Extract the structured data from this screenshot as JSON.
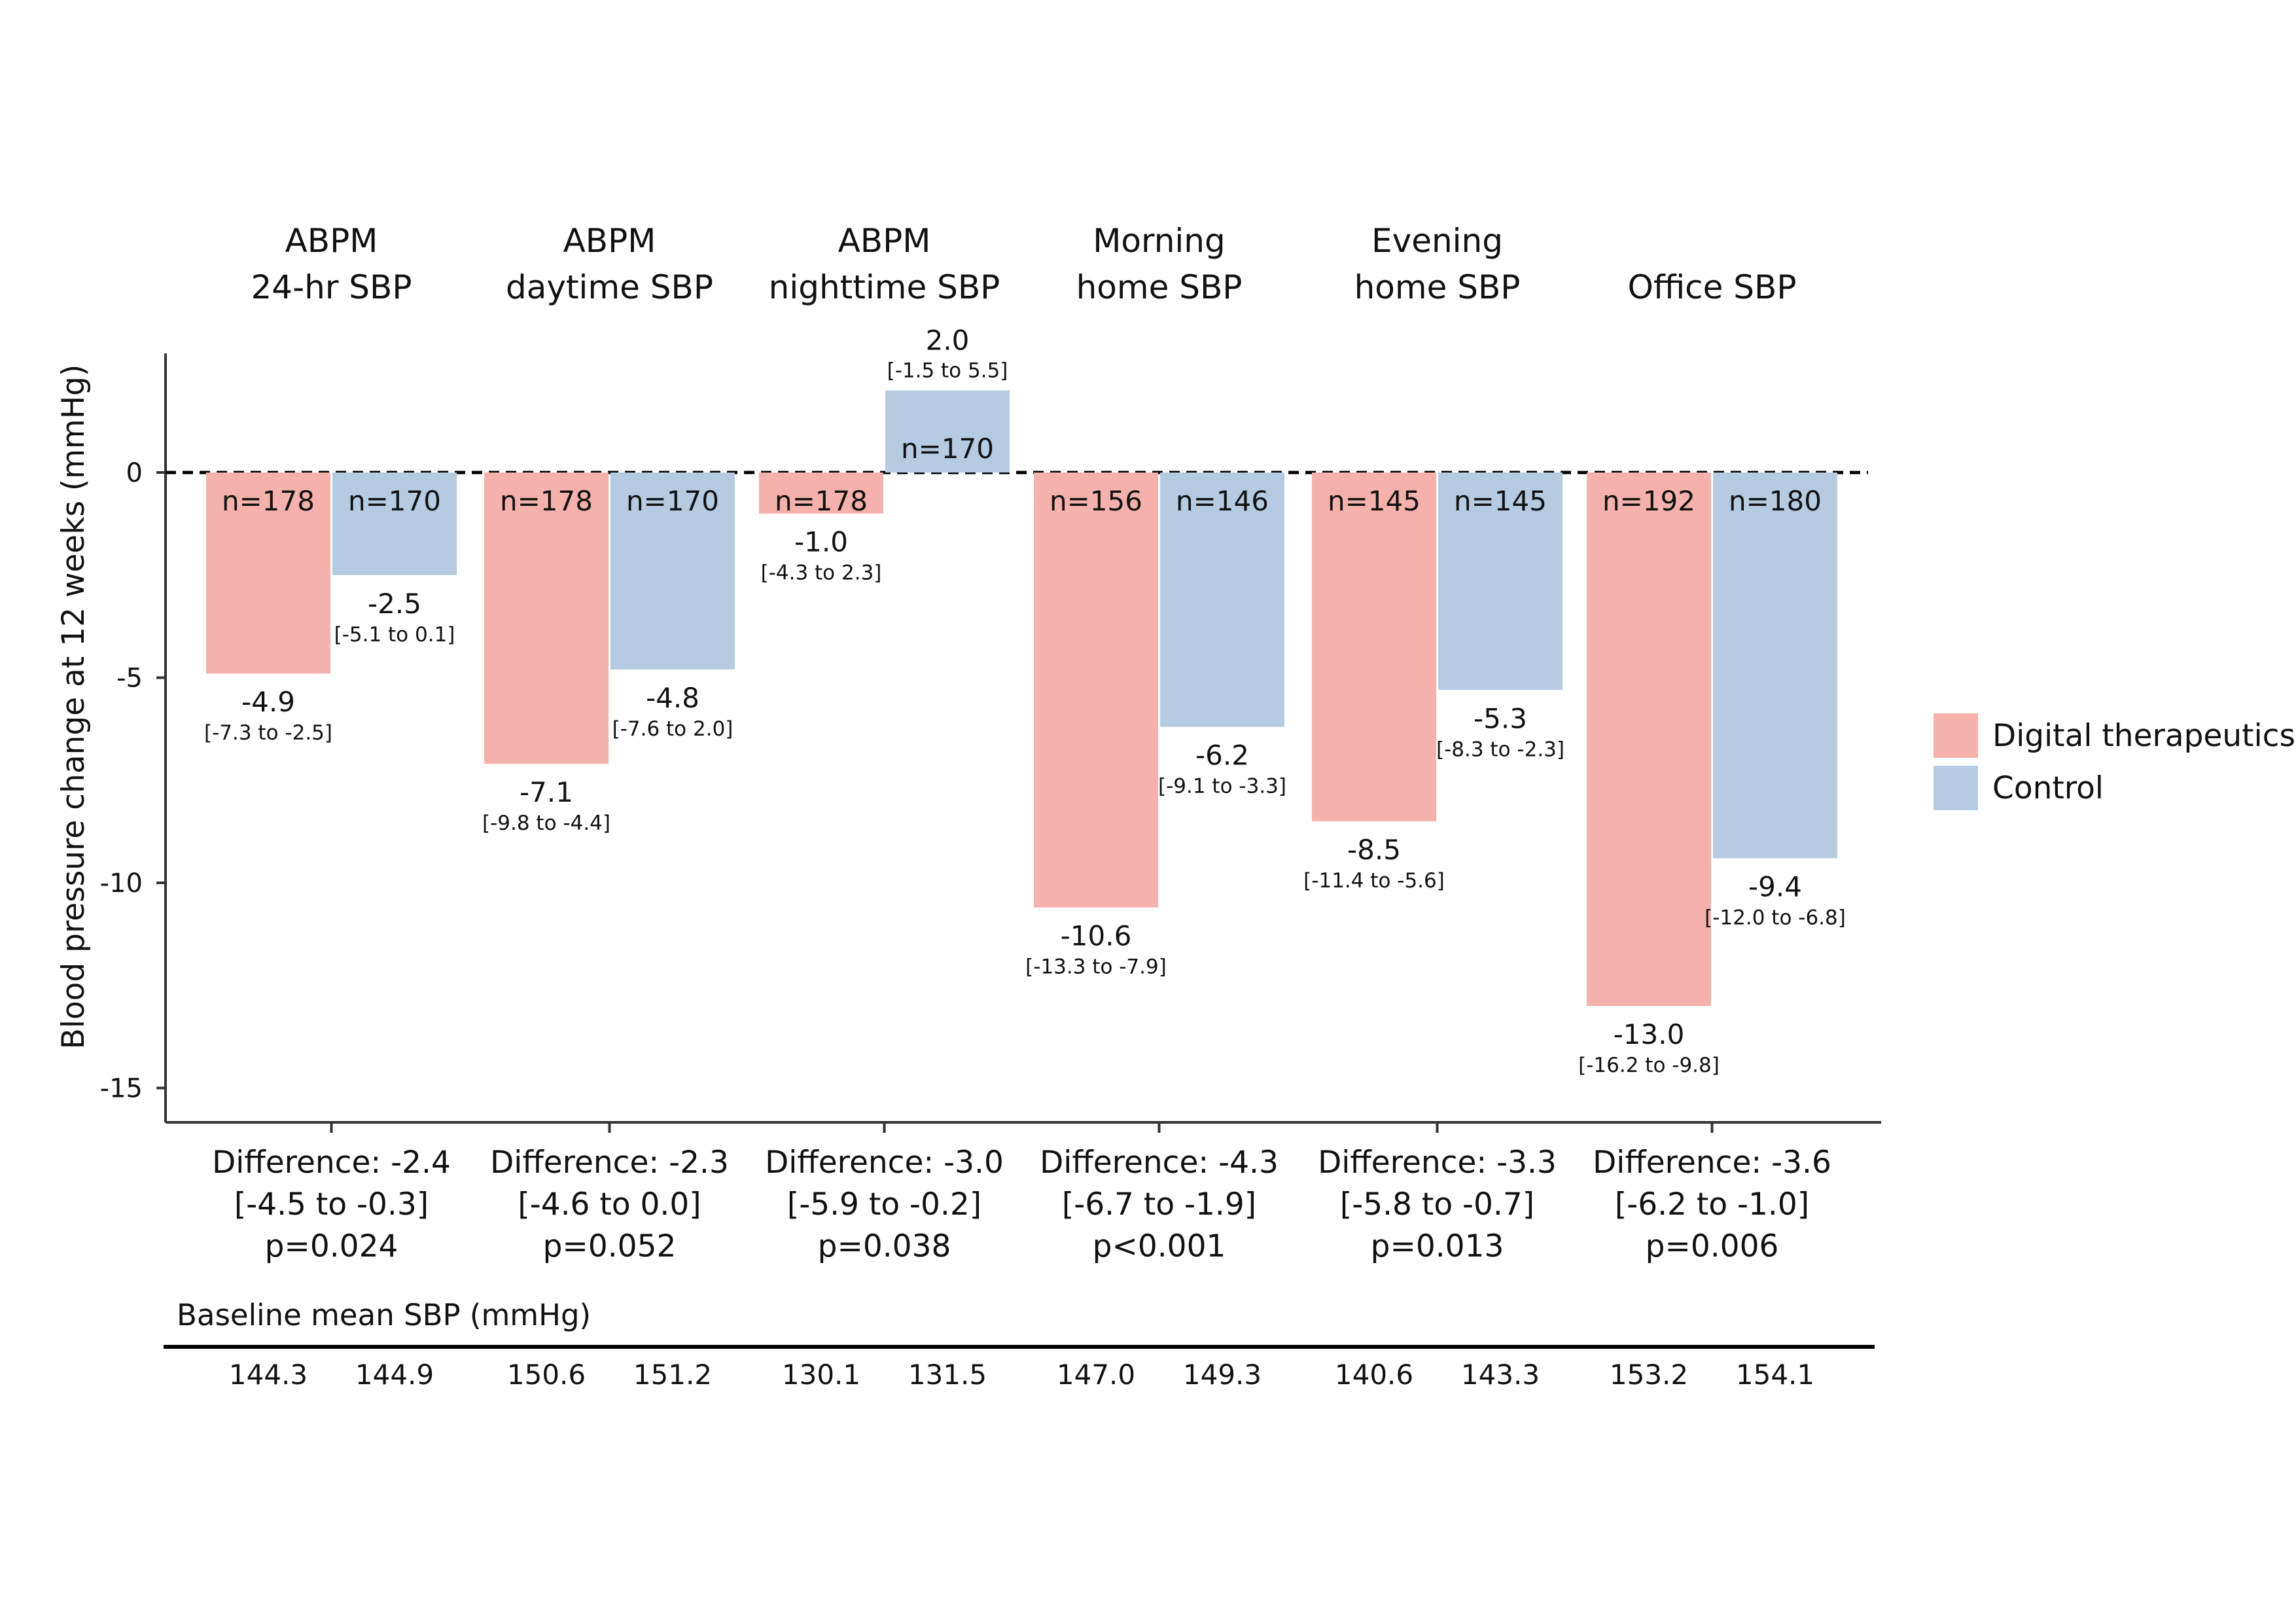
{
  "chart_data": {
    "type": "bar",
    "ylabel": "Blood pressure change at 12 weeks (mmHg)",
    "ylim": [
      -15,
      2.8
    ],
    "yticks": [
      0,
      -5,
      -10,
      -15
    ],
    "categories": [
      [
        "ABPM",
        "24-hr SBP"
      ],
      [
        "ABPM",
        "daytime SBP"
      ],
      [
        "ABPM",
        "nighttime SBP"
      ],
      [
        "Morning",
        "home SBP"
      ],
      [
        "Evening",
        "home SBP"
      ],
      [
        "",
        "Office SBP"
      ]
    ],
    "series": [
      {
        "name": "Digital therapeutics",
        "color": "#f5b1ab",
        "values": [
          -4.9,
          -7.1,
          -1.0,
          -10.6,
          -8.5,
          -13.0
        ],
        "labels": [
          "-4.9",
          "-7.1",
          "-1.0",
          "-10.6",
          "-8.5",
          "-13.0"
        ],
        "ci": [
          "[-7.3 to -2.5]",
          "[-9.8 to -4.4]",
          "[-4.3 to 2.3]",
          "[-13.3 to -7.9]",
          "[-11.4 to -5.6]",
          "[-16.2 to -9.8]"
        ],
        "n": [
          "n=178",
          "n=178",
          "n=178",
          "n=156",
          "n=145",
          "n=192"
        ],
        "baseline": [
          "144.3",
          "150.6",
          "130.1",
          "147.0",
          "140.6",
          "153.2"
        ]
      },
      {
        "name": "Control",
        "color": "#b5cbe1",
        "values": [
          -2.5,
          -4.8,
          2.0,
          -6.2,
          -5.3,
          -9.4
        ],
        "labels": [
          "-2.5",
          "-4.8",
          "2.0",
          "-6.2",
          "-5.3",
          "-9.4"
        ],
        "ci": [
          "[-5.1 to 0.1]",
          "[-7.6 to 2.0]",
          "[-1.5 to 5.5]",
          "[-9.1 to -3.3]",
          "[-8.3 to -2.3]",
          "[-12.0 to -6.8]"
        ],
        "n": [
          "n=170",
          "n=170",
          "n=170",
          "n=146",
          "n=145",
          "n=180"
        ],
        "baseline": [
          "144.9",
          "151.2",
          "131.5",
          "149.3",
          "143.3",
          "154.1"
        ]
      }
    ],
    "differences": [
      [
        "Difference: -2.4",
        "[-4.5 to -0.3]",
        "p=0.024"
      ],
      [
        "Difference: -2.3",
        "[-4.6 to 0.0]",
        "p=0.052"
      ],
      [
        "Difference: -3.0",
        "[-5.9 to -0.2]",
        "p=0.038"
      ],
      [
        "Difference: -4.3",
        "[-6.7 to -1.9]",
        "p<0.001"
      ],
      [
        "Difference: -3.3",
        "[-5.8 to -0.7]",
        "p=0.013"
      ],
      [
        "Difference: -3.6",
        "[-6.2 to -1.0]",
        "p=0.006"
      ]
    ],
    "baseline_label": "Baseline mean SBP (mmHg)",
    "legend_position": "right",
    "reference_line": 0
  }
}
